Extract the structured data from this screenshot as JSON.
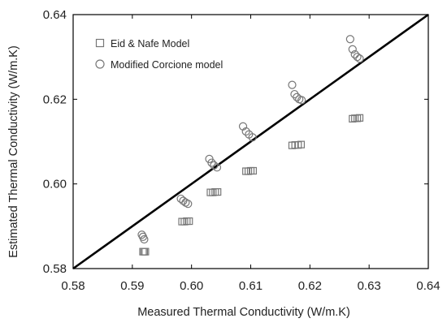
{
  "chart_data": {
    "type": "scatter",
    "title": "",
    "xlabel": "Measured Thermal Conductivity (W/m.K)",
    "ylabel": "Estimated Thermal Conductivity (W/m.K)",
    "xlim": [
      0.58,
      0.64
    ],
    "ylim": [
      0.58,
      0.64
    ],
    "xticks": [
      "0.58",
      "0.59",
      "0.60",
      "0.61",
      "0.62",
      "0.63",
      "0.64"
    ],
    "yticks": [
      "0.58",
      "0.60",
      "0.62",
      "0.64"
    ],
    "grid": false,
    "legend_position": "top-left",
    "reference_line": {
      "x": [
        0.58,
        0.64
      ],
      "y": [
        0.58,
        0.64
      ],
      "color": "#000000"
    },
    "series": [
      {
        "name": "Eid & Nafe Model",
        "marker": "square",
        "color": "#777777",
        "x": [
          0.5918,
          0.592,
          0.5922,
          0.5984,
          0.5988,
          0.5992,
          0.5996,
          0.6032,
          0.6036,
          0.604,
          0.6044,
          0.6092,
          0.6096,
          0.61,
          0.6104,
          0.617,
          0.6175,
          0.618,
          0.6185,
          0.6272,
          0.6276,
          0.628,
          0.6284
        ],
        "y": [
          0.584,
          0.584,
          0.584,
          0.5911,
          0.5911,
          0.5912,
          0.5912,
          0.598,
          0.598,
          0.5981,
          0.5981,
          0.603,
          0.603,
          0.6031,
          0.6031,
          0.6091,
          0.6092,
          0.6092,
          0.6093,
          0.6154,
          0.6155,
          0.6155,
          0.6156
        ]
      },
      {
        "name": "Modified Corcione model",
        "marker": "circle",
        "color": "#777777",
        "x": [
          0.5916,
          0.5918,
          0.592,
          0.5982,
          0.5986,
          0.599,
          0.5994,
          0.603,
          0.6034,
          0.6038,
          0.6043,
          0.6087,
          0.6092,
          0.6097,
          0.6103,
          0.617,
          0.6174,
          0.6178,
          0.6182,
          0.6186,
          0.6268,
          0.6272,
          0.6276,
          0.628,
          0.6284
        ],
        "y": [
          0.588,
          0.5875,
          0.5869,
          0.5965,
          0.596,
          0.5956,
          0.5953,
          0.6059,
          0.605,
          0.6044,
          0.6039,
          0.6136,
          0.6124,
          0.6117,
          0.611,
          0.6234,
          0.6212,
          0.6205,
          0.62,
          0.6198,
          0.6342,
          0.6318,
          0.6306,
          0.63,
          0.6296
        ]
      }
    ]
  }
}
